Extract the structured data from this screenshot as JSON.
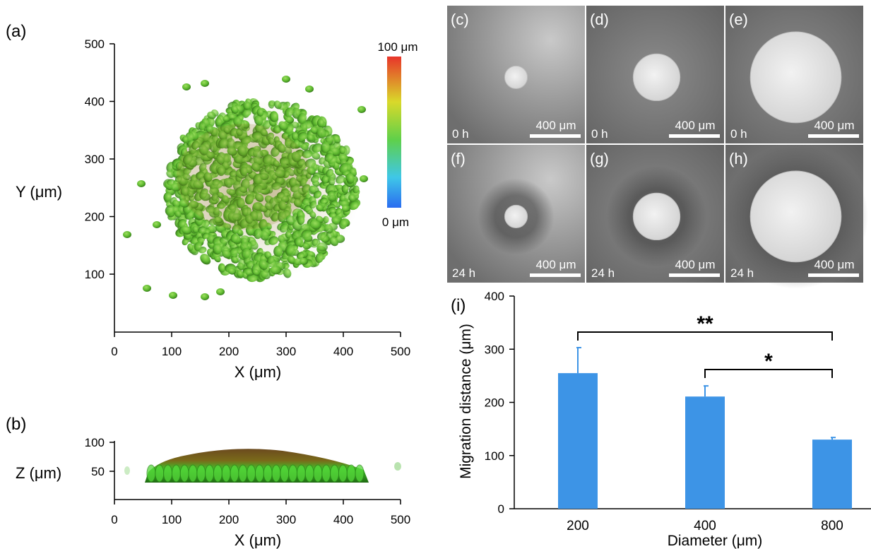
{
  "panels": {
    "a": {
      "letter": "(a)",
      "xlabel": "X (μm)",
      "ylabel": "Y (μm)",
      "xticks": [
        "0",
        "100",
        "200",
        "300",
        "400",
        "500"
      ],
      "yticks": [
        "100",
        "200",
        "300",
        "400",
        "500"
      ],
      "colorbar": {
        "top_label": "100 μm",
        "bottom_label": "0 μm"
      }
    },
    "b": {
      "letter": "(b)",
      "xlabel": "X (μm)",
      "ylabel": "Z (μm)",
      "xticks": [
        "0",
        "100",
        "200",
        "300",
        "400",
        "500"
      ],
      "yticks": [
        "50",
        "100"
      ]
    },
    "micrographs": [
      {
        "letter": "(c)",
        "time": "0 h",
        "scale": "400 μm",
        "spot": 0.165
      },
      {
        "letter": "(d)",
        "time": "0 h",
        "scale": "400 μm",
        "spot": 0.34
      },
      {
        "letter": "(e)",
        "time": "0 h",
        "scale": "400 μm",
        "spot": 0.66
      },
      {
        "letter": "(f)",
        "time": "24 h",
        "scale": "400 μm",
        "spot": 0.165
      },
      {
        "letter": "(g)",
        "time": "24 h",
        "scale": "400 μm",
        "spot": 0.34
      },
      {
        "letter": "(h)",
        "time": "24 h",
        "scale": "400 μm",
        "spot": 0.66
      }
    ],
    "i": {
      "letter": "(i)"
    }
  },
  "colors": {
    "bar": "#3d94e6",
    "cells": "#5cb82e",
    "cells_dark": "#3c7a1c"
  },
  "chart_data": {
    "type": "bar",
    "xlabel": "Diameter (μm)",
    "ylabel": "Migration distance (μm)",
    "categories": [
      "200",
      "400",
      "800"
    ],
    "values": [
      255,
      211,
      130
    ],
    "errors": [
      48,
      20,
      4
    ],
    "ylim": [
      0,
      400
    ],
    "yticks": [
      "0",
      "100",
      "200",
      "300",
      "400"
    ],
    "significance": [
      {
        "from": "200",
        "to": "800",
        "label": "**"
      },
      {
        "from": "400",
        "to": "800",
        "label": "*"
      }
    ]
  }
}
